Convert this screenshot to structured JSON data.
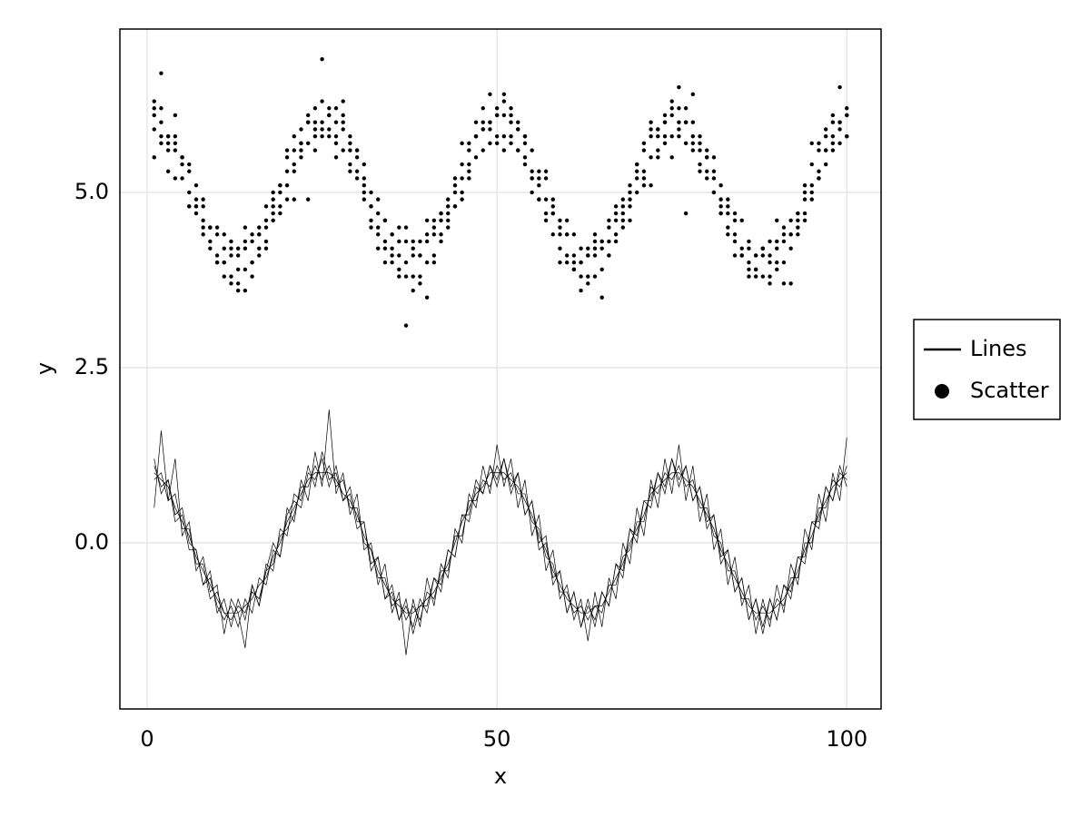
{
  "chart_data": {
    "type": "line-scatter",
    "x_label": "x",
    "y_label": "y",
    "xlim": [
      -3.9,
      104.9
    ],
    "ylim": [
      -2.37,
      7.33
    ],
    "xticks": [
      0,
      50,
      100
    ],
    "yticks": [
      {
        "value": 0,
        "label": "0.0"
      },
      {
        "value": 2.5,
        "label": "2.5"
      },
      {
        "value": 5,
        "label": "5.0"
      }
    ],
    "grid": true,
    "legend": "right",
    "x": [
      1,
      2,
      3,
      4,
      5,
      6,
      7,
      8,
      9,
      10,
      11,
      12,
      13,
      14,
      15,
      16,
      17,
      18,
      19,
      20,
      21,
      22,
      23,
      24,
      25,
      26,
      27,
      28,
      29,
      30,
      31,
      32,
      33,
      34,
      35,
      36,
      37,
      38,
      39,
      40,
      41,
      42,
      43,
      44,
      45,
      46,
      47,
      48,
      49,
      50,
      51,
      52,
      53,
      54,
      55,
      56,
      57,
      58,
      59,
      60,
      61,
      62,
      63,
      64,
      65,
      66,
      67,
      68,
      69,
      70,
      71,
      72,
      73,
      74,
      75,
      76,
      77,
      78,
      79,
      80,
      81,
      82,
      83,
      84,
      85,
      86,
      87,
      88,
      89,
      90,
      91,
      92,
      93,
      94,
      95,
      96,
      97,
      98,
      99,
      100
    ],
    "series": [
      {
        "name": "Lines",
        "type": "line",
        "color": "#000000",
        "values": [
          [
            1.1,
            0.8,
            0.9,
            0.4,
            0.5,
            0.0,
            -0.1,
            -0.6,
            -0.5,
            -0.9,
            -1.1,
            -0.9,
            -1.2,
            -0.8,
            -1.0,
            -0.5,
            -0.6,
            -0.1,
            -0.2,
            0.4,
            0.6,
            0.5,
            1.0,
            0.9,
            1.2,
            0.8,
            1.1,
            0.6,
            0.7,
            0.2,
            0.3,
            -0.3,
            -0.2,
            -0.8,
            -0.7,
            -1.1,
            -0.8,
            -1.3,
            -0.9,
            -0.9,
            -0.5,
            -0.7,
            -0.1,
            -0.2,
            0.4,
            0.3,
            0.8,
            0.7,
            1.1,
            0.9,
            1.2,
            0.8,
            1.0,
            0.4,
            0.6,
            -0.1,
            0.0,
            -0.5,
            -0.4,
            -1.0,
            -0.7,
            -1.2,
            -0.9,
            -1.1,
            -0.7,
            -0.9,
            -0.3,
            -0.4,
            0.2,
            0.0,
            0.6,
            0.5,
            1.0,
            0.7,
            1.2,
            0.8,
            1.1,
            0.6,
            0.8,
            0.2,
            0.4,
            -0.3,
            -0.1,
            -0.7,
            -0.5,
            -1.1,
            -0.8,
            -1.2,
            -0.8,
            -1.1,
            -0.6,
            -0.8,
            -0.2,
            -0.3,
            0.3,
            0.2,
            0.8,
            0.6,
            1.1,
            0.8
          ],
          [
            0.9,
            1.0,
            0.6,
            0.7,
            0.2,
            0.2,
            -0.3,
            -0.3,
            -0.8,
            -0.7,
            -1.0,
            -1.1,
            -0.9,
            -1.0,
            -0.7,
            -0.8,
            -0.4,
            -0.3,
            0.1,
            0.2,
            0.4,
            0.8,
            0.8,
            1.1,
            0.9,
            1.1,
            0.8,
            0.9,
            0.5,
            0.5,
            0.0,
            -0.1,
            -0.5,
            -0.5,
            -0.9,
            -0.8,
            -1.1,
            -0.9,
            -1.1,
            -0.7,
            -0.8,
            -0.4,
            -0.4,
            0.1,
            0.1,
            0.6,
            0.6,
            0.9,
            0.8,
            1.1,
            0.9,
            1.0,
            0.7,
            0.7,
            0.3,
            0.2,
            -0.2,
            -0.3,
            -0.7,
            -0.7,
            -1.0,
            -0.9,
            -1.1,
            -0.9,
            -1.0,
            -0.6,
            -0.6,
            -0.2,
            -0.1,
            0.3,
            0.3,
            0.8,
            0.7,
            1.0,
            0.9,
            1.1,
            0.8,
            0.9,
            0.5,
            0.5,
            0.1,
            0.0,
            -0.4,
            -0.4,
            -0.8,
            -0.8,
            -1.1,
            -0.9,
            -1.1,
            -0.8,
            -0.9,
            -0.5,
            -0.5,
            0.0,
            0.0,
            0.5,
            0.5,
            0.9,
            0.8,
            1.1
          ],
          [
            1.2,
            0.7,
            0.9,
            0.3,
            0.4,
            -0.1,
            -0.1,
            -0.6,
            -0.4,
            -1.0,
            -0.8,
            -1.2,
            -0.8,
            -1.1,
            -0.6,
            -0.9,
            -0.3,
            -0.4,
            0.2,
            0.1,
            0.7,
            0.6,
            1.1,
            0.8,
            1.3,
            0.9,
            1.0,
            0.6,
            0.8,
            0.3,
            0.3,
            -0.4,
            -0.2,
            -0.8,
            -0.6,
            -1.1,
            -0.9,
            -1.2,
            -0.8,
            -1.0,
            -0.5,
            -0.6,
            -0.1,
            -0.2,
            0.4,
            0.4,
            0.9,
            0.7,
            1.1,
            0.8,
            1.2,
            0.7,
            1.0,
            0.4,
            0.6,
            0.0,
            0.1,
            -0.6,
            -0.4,
            -1.0,
            -0.7,
            -1.2,
            -0.8,
            -1.2,
            -0.7,
            -0.9,
            -0.3,
            -0.5,
            0.2,
            0.1,
            0.6,
            0.6,
            1.0,
            0.8,
            1.2,
            0.9,
            1.1,
            0.6,
            0.8,
            0.3,
            0.4,
            -0.2,
            -0.1,
            -0.7,
            -0.5,
            -1.1,
            -0.8,
            -1.3,
            -0.8,
            -1.1,
            -0.6,
            -0.7,
            -0.2,
            -0.2,
            0.3,
            0.3,
            0.8,
            0.6,
            1.0,
            0.9
          ],
          [
            1.0,
            0.9,
            0.8,
            0.5,
            0.3,
            0.1,
            -0.2,
            -0.4,
            -0.6,
            -0.8,
            -1.0,
            -1.0,
            -1.0,
            -0.9,
            -0.8,
            -0.6,
            -0.5,
            -0.2,
            0.0,
            0.3,
            0.5,
            0.7,
            0.9,
            1.0,
            1.0,
            1.0,
            0.9,
            0.7,
            0.6,
            0.4,
            0.1,
            -0.1,
            -0.4,
            -0.6,
            -0.8,
            -0.9,
            -1.0,
            -1.0,
            -0.9,
            -0.8,
            -0.7,
            -0.5,
            -0.3,
            0.0,
            0.3,
            0.5,
            0.7,
            0.8,
            1.0,
            1.0,
            1.0,
            0.9,
            0.8,
            0.6,
            0.4,
            0.1,
            -0.1,
            -0.4,
            -0.6,
            -0.8,
            -0.9,
            -1.0,
            -1.0,
            -0.9,
            -0.9,
            -0.7,
            -0.5,
            -0.3,
            0.0,
            0.2,
            0.4,
            0.7,
            0.8,
            0.9,
            1.0,
            1.0,
            0.9,
            0.8,
            0.6,
            0.4,
            0.2,
            -0.1,
            -0.3,
            -0.5,
            -0.7,
            -0.9,
            -1.0,
            -1.0,
            -1.0,
            -0.9,
            -0.8,
            -0.6,
            -0.4,
            -0.1,
            0.1,
            0.4,
            0.6,
            0.8,
            0.9,
            1.0
          ],
          [
            0.5,
            1.6,
            0.6,
            1.2,
            0.1,
            0.3,
            -0.4,
            -0.2,
            -0.7,
            -0.6,
            -1.3,
            -0.8,
            -1.0,
            -1.5,
            -0.6,
            -0.9,
            -0.4,
            0.0,
            -0.2,
            0.5,
            0.3,
            0.9,
            0.6,
            1.3,
            0.8,
            1.9,
            0.7,
            1.0,
            0.4,
            0.7,
            -0.1,
            0.0,
            -0.6,
            -0.3,
            -1.0,
            -0.7,
            -1.6,
            -0.8,
            -1.2,
            -0.5,
            -0.9,
            -0.3,
            -0.5,
            0.2,
            0.0,
            0.7,
            0.5,
            1.1,
            0.7,
            1.4,
            0.8,
            1.2,
            0.5,
            0.9,
            0.1,
            0.4,
            -0.4,
            -0.1,
            -0.8,
            -0.6,
            -1.1,
            -0.8,
            -1.4,
            -0.7,
            -1.2,
            -0.5,
            -0.8,
            0.0,
            -0.3,
            0.5,
            0.1,
            0.9,
            0.5,
            1.2,
            0.7,
            1.4,
            0.6,
            1.1,
            0.3,
            0.7,
            -0.1,
            0.2,
            -0.6,
            -0.2,
            -0.9,
            -0.6,
            -1.3,
            -0.8,
            -1.2,
            -0.6,
            -1.0,
            -0.3,
            -0.6,
            0.2,
            -0.1,
            0.7,
            0.3,
            1.0,
            0.6,
            1.5
          ]
        ]
      },
      {
        "name": "Scatter",
        "type": "scatter",
        "color": "#000000",
        "values": [
          [
            6.3,
            5.7,
            5.8,
            5.2,
            5.5,
            5.0,
            5.1,
            4.4,
            4.5,
            4.0,
            4.4,
            3.8,
            4.1,
            3.9,
            4.4,
            4.1,
            4.8,
            4.6,
            5.1,
            5.1,
            5.8,
            5.5,
            6.0,
            5.8,
            6.3,
            5.8,
            6.2,
            5.6,
            5.7,
            5.2,
            5.4,
            4.6,
            4.7,
            4.2,
            4.4,
            3.9,
            4.3,
            3.8,
            4.1,
            4.0,
            4.6,
            4.3,
            4.8,
            4.8,
            5.4,
            5.3,
            6.0,
            5.6,
            6.0,
            5.8,
            6.3,
            5.7,
            5.9,
            5.4,
            5.6,
            4.9,
            5.2,
            4.4,
            4.5,
            4.0,
            4.4,
            3.8,
            4.1,
            3.8,
            4.3,
            4.1,
            4.8,
            4.5,
            5.1,
            5.0,
            5.7,
            5.5,
            5.9,
            5.7,
            6.3,
            5.8,
            6.2,
            5.6,
            5.7,
            5.2,
            5.5,
            4.7,
            4.8,
            4.3,
            4.6,
            3.9,
            4.1,
            3.8,
            4.3,
            3.9,
            4.5,
            4.2,
            4.7,
            4.7,
            5.4,
            5.2,
            5.9,
            5.6,
            6.0,
            5.8
          ],
          [
            5.9,
            6.2,
            5.6,
            5.7,
            5.2,
            5.3,
            4.7,
            4.8,
            4.3,
            4.4,
            4.0,
            4.2,
            3.7,
            4.3,
            4.0,
            4.5,
            4.3,
            5.0,
            4.8,
            5.5,
            5.3,
            5.9,
            5.7,
            6.2,
            5.8,
            6.1,
            5.7,
            6.0,
            5.4,
            5.6,
            4.9,
            5.0,
            4.4,
            4.6,
            4.0,
            4.3,
            3.8,
            4.2,
            3.8,
            4.4,
            4.1,
            4.7,
            4.5,
            5.2,
            5.0,
            5.7,
            5.5,
            6.0,
            5.7,
            6.2,
            5.8,
            6.1,
            5.6,
            5.8,
            5.2,
            5.3,
            4.7,
            4.8,
            4.2,
            4.4,
            3.9,
            4.2,
            3.8,
            4.2,
            3.9,
            4.5,
            4.3,
            4.9,
            4.8,
            5.4,
            5.2,
            5.9,
            5.6,
            6.1,
            5.8,
            6.2,
            5.7,
            6.0,
            5.4,
            5.6,
            5.0,
            5.1,
            4.5,
            4.7,
            4.1,
            4.3,
            3.8,
            4.2,
            3.8,
            4.3,
            4.0,
            4.6,
            4.4,
            5.1,
            4.9,
            5.6,
            5.4,
            6.0,
            5.7,
            6.2
          ],
          [
            6.1,
            6.7,
            5.8,
            5.6,
            5.5,
            4.8,
            4.9,
            4.5,
            4.2,
            4.5,
            3.8,
            4.3,
            3.6,
            3.6,
            4.0,
            4.2,
            4.2,
            4.9,
            4.7,
            5.6,
            4.9,
            5.7,
            6.1,
            5.6,
            6.9,
            6.2,
            5.8,
            6.3,
            5.3,
            5.5,
            5.0,
            4.5,
            4.9,
            4.0,
            4.4,
            3.8,
            3.1,
            4.3,
            3.7,
            4.6,
            4.0,
            4.4,
            4.9,
            5.0,
            5.7,
            5.2,
            5.8,
            5.9,
            6.4,
            5.7,
            6.4,
            5.8,
            6.0,
            5.8,
            5.0,
            5.2,
            4.6,
            4.7,
            4.0,
            4.6,
            3.9,
            3.6,
            4.2,
            4.4,
            3.5,
            4.6,
            4.4,
            4.8,
            4.9,
            5.4,
            5.1,
            6.0,
            5.5,
            5.8,
            6.2,
            6.5,
            6.0,
            6.4,
            5.3,
            5.3,
            5.0,
            4.8,
            4.4,
            4.6,
            4.1,
            3.8,
            4.1,
            4.2,
            3.7,
            4.2,
            4.4,
            3.7,
            4.6,
            5.0,
            5.7,
            5.2,
            5.6,
            6.1,
            6.5,
            6.1
          ],
          [
            5.5,
            5.8,
            5.3,
            6.1,
            5.5,
            4.8,
            4.8,
            4.9,
            4.5,
            4.0,
            4.0,
            3.7,
            4.2,
            4.5,
            3.8,
            4.4,
            4.6,
            4.7,
            5.0,
            4.9,
            5.4,
            5.6,
            4.9,
            6.0,
            5.9,
            5.9,
            5.5,
            6.1,
            5.8,
            5.6,
            5.2,
            4.8,
            4.2,
            4.6,
            4.1,
            4.5,
            4.5,
            3.6,
            4.3,
            3.5,
            4.5,
            4.7,
            4.6,
            4.8,
            4.9,
            5.4,
            5.8,
            6.2,
            5.9,
            6.1,
            5.6,
            6.2,
            5.6,
            5.5,
            5.2,
            4.9,
            5.3,
            4.9,
            4.6,
            4.4,
            4.1,
            4.0,
            3.7,
            4.3,
            4.3,
            4.1,
            4.7,
            4.6,
            4.6,
            5.2,
            5.6,
            5.1,
            5.9,
            6.0,
            5.5,
            5.9,
            4.7,
            5.8,
            5.8,
            5.5,
            5.3,
            4.7,
            4.9,
            4.1,
            4.1,
            4.0,
            3.9,
            4.2,
            4.0,
            4.6,
            3.7,
            4.4,
            4.5,
            4.6,
            5.0,
            5.7,
            5.8,
            5.8,
            6.0,
            5.8
          ],
          [
            6.2,
            6.0,
            5.7,
            5.8,
            5.4,
            5.4,
            4.8,
            4.6,
            4.5,
            4.1,
            4.2,
            4.1,
            3.9,
            4.2,
            4.3,
            4.4,
            4.5,
            4.8,
            5.1,
            5.3,
            5.6,
            5.7,
            6.0,
            5.9,
            6.0,
            6.1,
            6.0,
            5.9,
            5.6,
            5.3,
            5.1,
            4.8,
            4.5,
            4.3,
            4.2,
            4.1,
            4.0,
            4.1,
            4.1,
            4.3,
            4.4,
            4.6,
            4.7,
            5.1,
            5.2,
            5.6,
            5.8,
            5.9,
            6.0,
            6.1,
            6.1,
            6.0,
            5.9,
            5.7,
            5.3,
            5.1,
            4.9,
            4.7,
            4.4,
            4.1,
            4.0,
            4.0,
            4.1,
            4.1,
            4.2,
            4.3,
            4.6,
            4.7,
            5.0,
            5.3,
            5.3,
            5.8,
            5.8,
            6.0,
            6.1,
            6.0,
            6.0,
            5.7,
            5.6,
            5.5,
            5.2,
            4.9,
            4.7,
            4.4,
            4.2,
            4.2,
            3.9,
            4.1,
            4.1,
            4.0,
            4.3,
            4.4,
            4.7,
            4.9,
            5.1,
            5.3,
            5.6,
            5.7,
            5.9,
            6.1
          ]
        ]
      }
    ]
  }
}
